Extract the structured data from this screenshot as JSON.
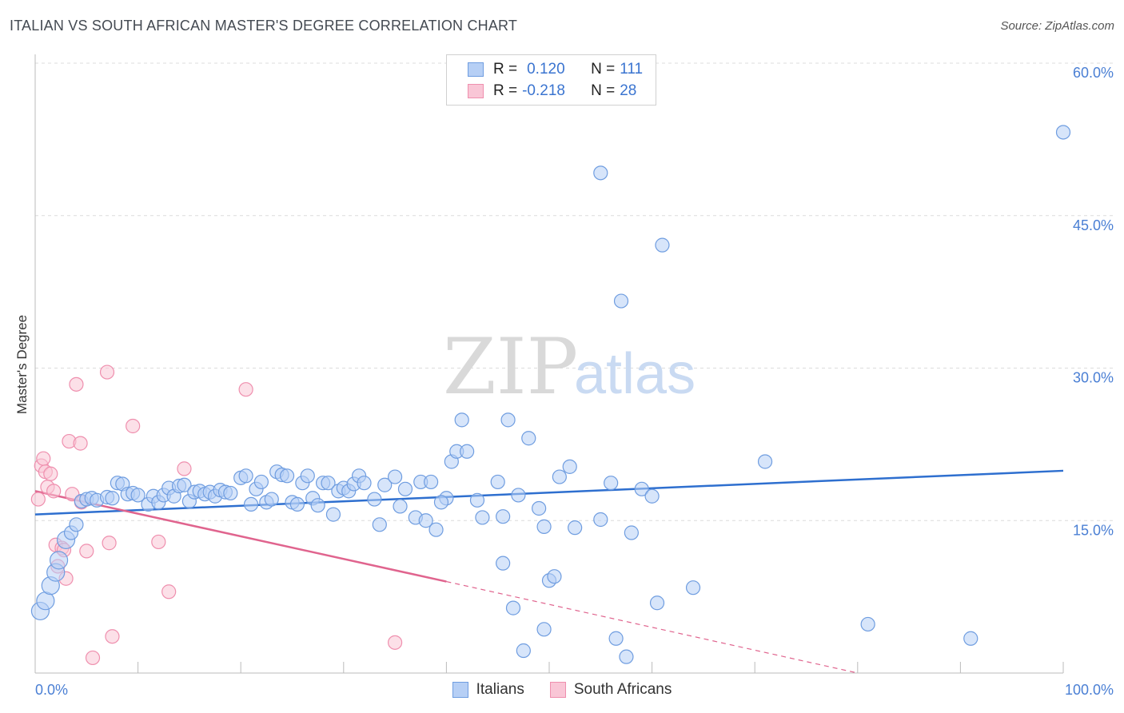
{
  "header": {
    "title": "ITALIAN VS SOUTH AFRICAN MASTER'S DEGREE CORRELATION CHART",
    "source": "Source: ZipAtlas.com"
  },
  "watermark": {
    "zip": "ZIP",
    "atlas": "atlas"
  },
  "legend": {
    "rows": [
      {
        "r_label": "R =",
        "r_value": "0.120",
        "n_label": "N =",
        "n_value": "111",
        "color": "#6f9de0",
        "fill": "#b6cff5"
      },
      {
        "r_label": "R =",
        "r_value": "-0.218",
        "n_label": "N =",
        "n_value": "28",
        "color": "#ef8fae",
        "fill": "#f9c6d6"
      }
    ]
  },
  "bottom_legend": {
    "italians": "Italians",
    "south_africans": "South Africans"
  },
  "chart_data": {
    "type": "scatter",
    "title": "ITALIAN VS SOUTH AFRICAN MASTER'S DEGREE CORRELATION CHART",
    "xlabel": "",
    "ylabel": "Master's Degree",
    "xlim": [
      0,
      100
    ],
    "ylim": [
      0,
      60
    ],
    "x_tick_labels": {
      "left": "0.0%",
      "right": "100.0%"
    },
    "y_ticks": [
      {
        "value": 15,
        "label": "15.0%"
      },
      {
        "value": 30,
        "label": "30.0%"
      },
      {
        "value": 45,
        "label": "45.0%"
      },
      {
        "value": 60,
        "label": "60.0%"
      }
    ],
    "series": [
      {
        "name": "Italians",
        "color": "#6f9de0",
        "fill": "#b6cff5",
        "trend": {
          "x0": 0,
          "y0": 15.6,
          "x1": 100,
          "y1": 19.9
        },
        "points": [
          [
            0.5,
            6.1
          ],
          [
            1,
            7.1
          ],
          [
            1.5,
            8.6
          ],
          [
            2,
            9.9
          ],
          [
            2.3,
            11.1
          ],
          [
            3,
            13.1
          ],
          [
            3.5,
            13.8
          ],
          [
            4,
            14.6
          ],
          [
            4.5,
            16.9
          ],
          [
            5,
            17.1
          ],
          [
            5.5,
            17.2
          ],
          [
            6,
            17.0
          ],
          [
            7,
            17.3
          ],
          [
            7.5,
            17.2
          ],
          [
            8,
            18.7
          ],
          [
            8.5,
            18.6
          ],
          [
            9,
            17.6
          ],
          [
            9.5,
            17.7
          ],
          [
            10,
            17.5
          ],
          [
            11,
            16.6
          ],
          [
            11.5,
            17.4
          ],
          [
            12,
            16.8
          ],
          [
            12.5,
            17.5
          ],
          [
            13,
            18.2
          ],
          [
            13.5,
            17.4
          ],
          [
            14,
            18.4
          ],
          [
            14.5,
            18.5
          ],
          [
            15,
            16.9
          ],
          [
            15.5,
            17.8
          ],
          [
            16,
            17.9
          ],
          [
            16.5,
            17.6
          ],
          [
            17,
            17.8
          ],
          [
            17.5,
            17.4
          ],
          [
            18,
            18.0
          ],
          [
            18.5,
            17.8
          ],
          [
            19,
            17.7
          ],
          [
            20,
            19.2
          ],
          [
            20.5,
            19.4
          ],
          [
            21,
            16.6
          ],
          [
            21.5,
            18.1
          ],
          [
            22,
            18.8
          ],
          [
            22.5,
            16.8
          ],
          [
            23,
            17.1
          ],
          [
            23.5,
            19.8
          ],
          [
            24,
            19.5
          ],
          [
            24.5,
            19.4
          ],
          [
            25,
            16.8
          ],
          [
            25.5,
            16.6
          ],
          [
            26,
            18.7
          ],
          [
            26.5,
            19.4
          ],
          [
            27,
            17.2
          ],
          [
            27.5,
            16.5
          ],
          [
            28,
            18.7
          ],
          [
            28.5,
            18.7
          ],
          [
            29,
            15.6
          ],
          [
            29.5,
            17.9
          ],
          [
            30,
            18.2
          ],
          [
            30.5,
            17.9
          ],
          [
            31,
            18.6
          ],
          [
            31.5,
            19.4
          ],
          [
            32,
            18.7
          ],
          [
            33,
            17.1
          ],
          [
            33.5,
            14.6
          ],
          [
            34,
            18.5
          ],
          [
            35,
            19.3
          ],
          [
            35.5,
            16.4
          ],
          [
            36,
            18.1
          ],
          [
            37,
            15.3
          ],
          [
            37.5,
            18.8
          ],
          [
            38,
            15.0
          ],
          [
            38.5,
            18.8
          ],
          [
            39,
            14.1
          ],
          [
            40,
            17.2
          ],
          [
            39.5,
            16.8
          ],
          [
            40.5,
            20.8
          ],
          [
            41,
            21.8
          ],
          [
            42,
            21.8
          ],
          [
            41.5,
            24.9
          ],
          [
            43,
            17.0
          ],
          [
            43.5,
            15.3
          ],
          [
            45,
            18.8
          ],
          [
            45.5,
            15.4
          ],
          [
            46,
            24.9
          ],
          [
            47,
            17.5
          ],
          [
            48,
            23.1
          ],
          [
            49,
            16.2
          ],
          [
            49.5,
            14.4
          ],
          [
            50,
            9.1
          ],
          [
            50.5,
            9.5
          ],
          [
            51,
            19.3
          ],
          [
            52,
            20.3
          ],
          [
            52.5,
            14.3
          ],
          [
            55,
            15.1
          ],
          [
            56,
            18.7
          ],
          [
            56.5,
            3.4
          ],
          [
            57,
            36.6
          ],
          [
            57.5,
            1.6
          ],
          [
            58,
            13.8
          ],
          [
            59,
            18.1
          ],
          [
            60,
            17.4
          ],
          [
            60.5,
            6.9
          ],
          [
            61,
            42.1
          ],
          [
            45.5,
            10.8
          ],
          [
            46.5,
            6.4
          ],
          [
            47.5,
            2.2
          ],
          [
            49.5,
            4.3
          ],
          [
            55,
            49.2
          ],
          [
            64,
            8.4
          ],
          [
            71,
            20.8
          ],
          [
            81,
            4.8
          ],
          [
            91,
            3.4
          ],
          [
            100,
            53.2
          ]
        ]
      },
      {
        "name": "South Africans",
        "color": "#ef8fae",
        "fill": "#f9c6d6",
        "trend": {
          "x0": 0,
          "y0": 17.9,
          "x1": 40,
          "y1": 9.0,
          "dash_x1": 80,
          "dash_y1": 0.0
        },
        "points": [
          [
            0.3,
            17.1
          ],
          [
            0.6,
            20.4
          ],
          [
            0.8,
            21.1
          ],
          [
            1,
            19.8
          ],
          [
            1.2,
            18.3
          ],
          [
            1.5,
            19.6
          ],
          [
            1.8,
            17.9
          ],
          [
            2,
            12.6
          ],
          [
            2.2,
            10.5
          ],
          [
            2.6,
            12.3
          ],
          [
            3,
            9.3
          ],
          [
            3.3,
            22.8
          ],
          [
            3.6,
            17.6
          ],
          [
            4,
            28.4
          ],
          [
            4.4,
            22.6
          ],
          [
            5,
            12.0
          ],
          [
            5.6,
            1.5
          ],
          [
            7,
            29.6
          ],
          [
            7.2,
            12.8
          ],
          [
            7.5,
            3.6
          ],
          [
            9.5,
            24.3
          ],
          [
            12,
            12.9
          ],
          [
            13,
            8.0
          ],
          [
            14.5,
            20.1
          ],
          [
            20.5,
            27.9
          ],
          [
            35,
            3.0
          ],
          [
            4.5,
            16.8
          ],
          [
            2.8,
            12.1
          ]
        ]
      }
    ]
  }
}
